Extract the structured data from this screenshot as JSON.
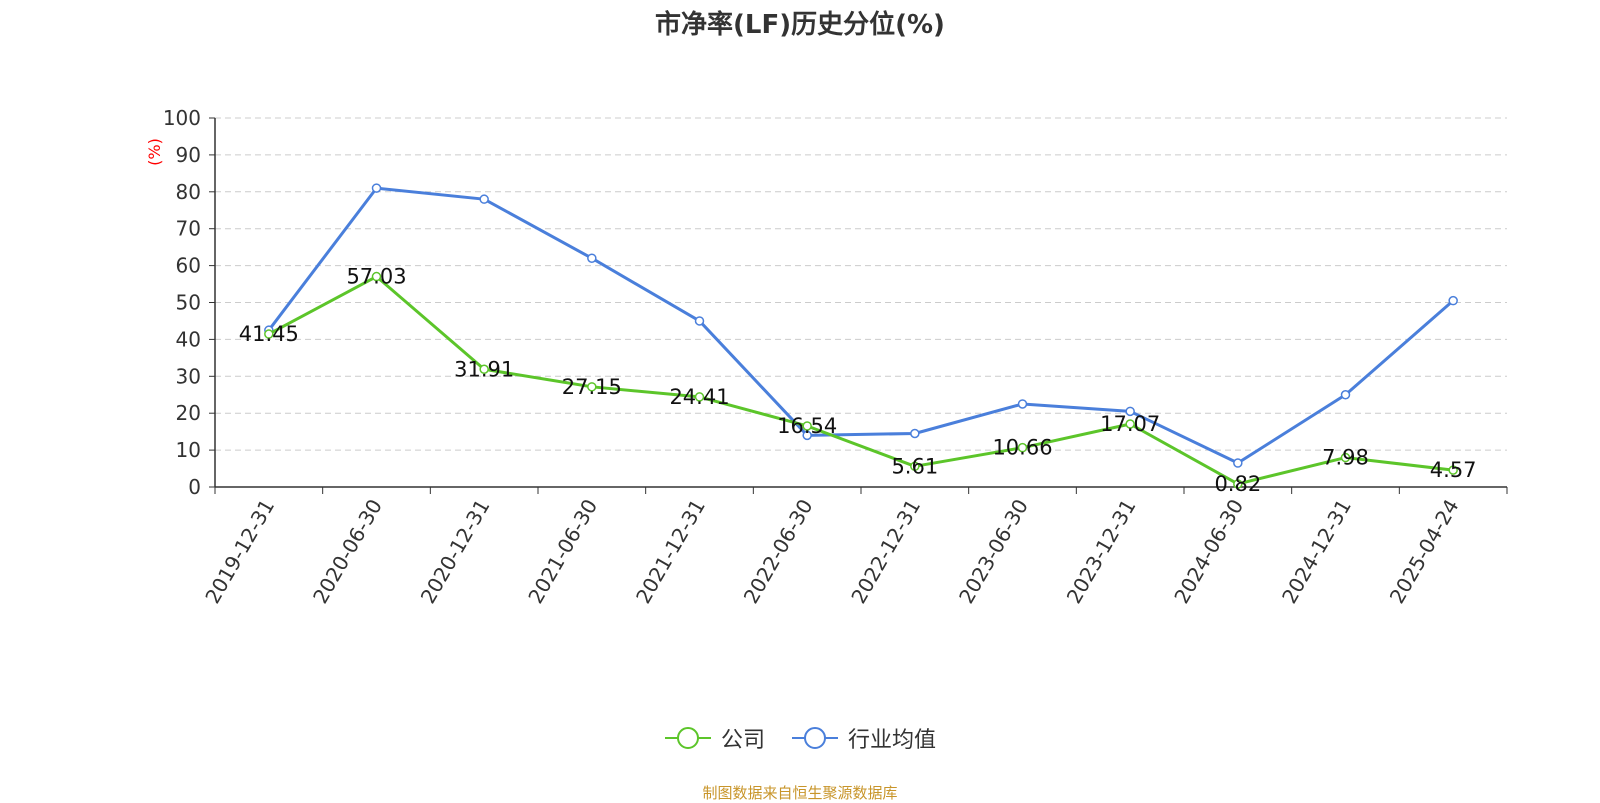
{
  "title": "市净率(LF)历史分位(%)",
  "footer": "制图数据来自恒生聚源数据库",
  "colors": {
    "company": "#5cc52a",
    "industry": "#4a7fdb",
    "axis_label": "#ff0000"
  },
  "chart_data": {
    "type": "line",
    "title": "市净率(LF)历史分位(%)",
    "ylabel": "(%)",
    "ylim": [
      0,
      100
    ],
    "yticks": [
      0,
      10,
      20,
      30,
      40,
      50,
      60,
      70,
      80,
      90,
      100
    ],
    "grid": true,
    "legend_position": "bottom",
    "categories": [
      "2019-12-31",
      "2020-06-30",
      "2020-12-31",
      "2021-06-30",
      "2021-12-31",
      "2022-06-30",
      "2022-12-31",
      "2023-06-30",
      "2023-12-31",
      "2024-06-30",
      "2024-12-31",
      "2025-04-24"
    ],
    "series": [
      {
        "name": "公司",
        "color": "#5cc52a",
        "show_labels": true,
        "values": [
          41.45,
          57.03,
          31.91,
          27.15,
          24.41,
          16.54,
          5.61,
          10.66,
          17.07,
          0.82,
          7.98,
          4.57
        ]
      },
      {
        "name": "行业均值",
        "color": "#4a7fdb",
        "show_labels": false,
        "values": [
          42.5,
          81,
          78,
          62,
          45,
          14,
          14.5,
          22.5,
          20.5,
          6.5,
          25,
          50.5
        ]
      }
    ]
  }
}
